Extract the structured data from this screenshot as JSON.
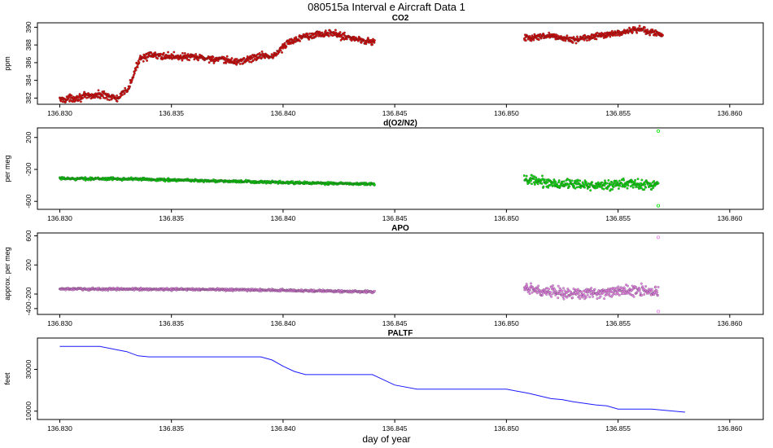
{
  "figure_title": "080515a   Interval e Aircraft Data 1",
  "xlabel": "day of year",
  "chart_data": [
    {
      "type": "scatter",
      "title": "CO2",
      "ylabel": "ppm",
      "xlim": [
        136.829,
        136.8615
      ],
      "ylim": [
        381.3,
        390.5
      ],
      "xticks": [
        "136.830",
        "136.835",
        "136.840",
        "136.845",
        "136.850",
        "136.855",
        "136.860"
      ],
      "yticks": [
        382,
        384,
        386,
        388,
        390
      ],
      "series": [
        {
          "name": "CO2",
          "color": "#e00000",
          "spread": 0.3,
          "points": [
            [
              136.83,
              381.8
            ],
            [
              136.8312,
              382.2
            ],
            [
              136.832,
              382.4
            ],
            [
              136.8326,
              381.9
            ],
            [
              136.8331,
              383.2
            ],
            [
              136.8336,
              386.6
            ],
            [
              136.834,
              386.8
            ],
            [
              136.8362,
              386.6
            ],
            [
              136.838,
              386.1
            ],
            [
              136.8392,
              386.9
            ],
            [
              136.8395,
              386.6
            ],
            [
              136.8402,
              388.2
            ],
            [
              136.841,
              389.1
            ],
            [
              136.8422,
              389.3
            ],
            [
              136.8432,
              388.7
            ],
            [
              136.8441,
              388.3
            ]
          ]
        },
        {
          "name": "CO2",
          "color": "#e00000",
          "spread": 0.25,
          "points": [
            [
              136.8508,
              388.8
            ],
            [
              136.852,
              389.0
            ],
            [
              136.853,
              388.6
            ],
            [
              136.8538,
              388.9
            ],
            [
              136.854,
              389.0
            ],
            [
              136.855,
              389.3
            ],
            [
              136.856,
              389.8
            ],
            [
              136.857,
              389.1
            ]
          ]
        }
      ]
    },
    {
      "type": "scatter",
      "title": "d(O2/N2)",
      "ylabel": "per meg",
      "xlim": [
        136.829,
        136.8615
      ],
      "ylim": [
        -700,
        320
      ],
      "xticks": [
        "136.830",
        "136.835",
        "136.840",
        "136.845",
        "136.850",
        "136.855",
        "136.860"
      ],
      "yticks": [
        200,
        -200,
        -600
      ],
      "series": [
        {
          "name": "d(O2/N2)",
          "color": "#00e000",
          "spread": 12,
          "points": [
            [
              136.83,
              -315
            ],
            [
              136.833,
              -318
            ],
            [
              136.836,
              -338
            ],
            [
              136.84,
              -365
            ],
            [
              136.8441,
              -385
            ]
          ]
        },
        {
          "name": "d(O2/N2)",
          "color": "#00e000",
          "spread": 45,
          "points": [
            [
              136.8508,
              -335
            ],
            [
              136.8525,
              -380
            ],
            [
              136.854,
              -400
            ],
            [
              136.8555,
              -380
            ],
            [
              136.8568,
              -395
            ]
          ]
        },
        {
          "name": "d(O2/N2) outliers",
          "color": "#00e000",
          "spread": 0,
          "points": [
            [
              136.8568,
              280
            ],
            [
              136.8568,
              -655
            ]
          ]
        }
      ]
    },
    {
      "type": "scatter",
      "title": "APO",
      "ylabel": "approx. per meg",
      "xlim": [
        136.829,
        136.8615
      ],
      "ylim": [
        -480,
        640
      ],
      "xticks": [
        "136.830",
        "136.835",
        "136.840",
        "136.845",
        "136.850",
        "136.855",
        "136.860"
      ],
      "yticks": [
        600,
        200,
        -200,
        -400
      ],
      "series": [
        {
          "name": "APO",
          "color": "#ee82ee",
          "spread": 12,
          "points": [
            [
              136.83,
              -130
            ],
            [
              136.836,
              -135
            ],
            [
              136.84,
              -148
            ],
            [
              136.8441,
              -170
            ]
          ]
        },
        {
          "name": "APO",
          "color": "#ee82ee",
          "spread": 55,
          "points": [
            [
              136.8508,
              -125
            ],
            [
              136.8525,
              -185
            ],
            [
              136.854,
              -185
            ],
            [
              136.8555,
              -155
            ],
            [
              136.8568,
              -160
            ]
          ]
        },
        {
          "name": "APO outliers",
          "color": "#ee82ee",
          "spread": 0,
          "points": [
            [
              136.8568,
              580
            ],
            [
              136.8568,
              -440
            ]
          ]
        }
      ]
    },
    {
      "type": "line",
      "title": "PALTF",
      "ylabel": "feet",
      "xlim": [
        136.829,
        136.8615
      ],
      "ylim": [
        6000,
        45000
      ],
      "xticks": [
        "136.830",
        "136.835",
        "136.840",
        "136.845",
        "136.850",
        "136.855",
        "136.860"
      ],
      "yticks": [
        30000,
        10000
      ],
      "series": [
        {
          "name": "PALTF",
          "color": "#1a1aff",
          "points": [
            [
              136.83,
              41000
            ],
            [
              136.8318,
              41000
            ],
            [
              136.8325,
              39500
            ],
            [
              136.833,
              38500
            ],
            [
              136.8335,
              36500
            ],
            [
              136.834,
              36000
            ],
            [
              136.838,
              36000
            ],
            [
              136.839,
              36000
            ],
            [
              136.8395,
              34500
            ],
            [
              136.84,
              31500
            ],
            [
              136.8405,
              29000
            ],
            [
              136.841,
              27500
            ],
            [
              136.842,
              27500
            ],
            [
              136.844,
              27500
            ],
            [
              136.8442,
              26500
            ],
            [
              136.845,
              22500
            ],
            [
              136.846,
              20500
            ],
            [
              136.849,
              20500
            ],
            [
              136.85,
              20500
            ],
            [
              136.851,
              18500
            ],
            [
              136.852,
              16000
            ],
            [
              136.8525,
              15500
            ],
            [
              136.853,
              14500
            ],
            [
              136.854,
              13000
            ],
            [
              136.8545,
              12500
            ],
            [
              136.855,
              11000
            ],
            [
              136.856,
              11000
            ],
            [
              136.8565,
              11000
            ],
            [
              136.857,
              10500
            ],
            [
              136.858,
              9500
            ]
          ]
        }
      ]
    }
  ]
}
